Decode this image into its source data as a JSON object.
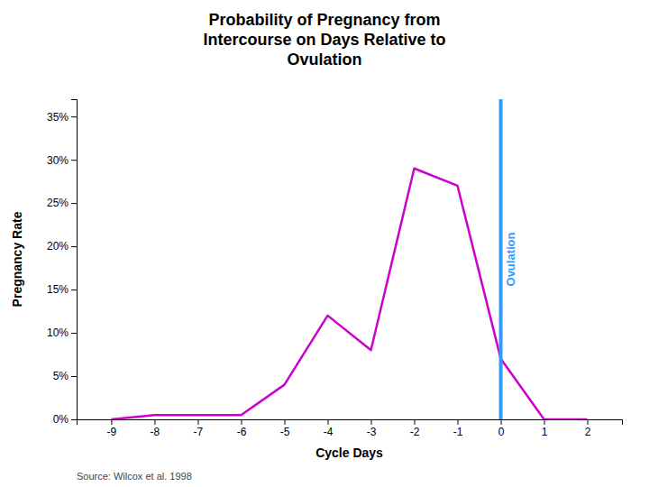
{
  "chart_data": {
    "type": "line",
    "title": "Probability of Pregnancy from\nIntercourse on Days Relative to\nOvulation",
    "x_label": "Cycle Days",
    "y_label": "Pregnancy Rate",
    "x": [
      -9,
      -8,
      -7,
      -6,
      -5,
      -4,
      -3,
      -2,
      -1,
      0,
      1,
      2
    ],
    "values": [
      0.0,
      0.005,
      0.005,
      0.005,
      0.04,
      0.12,
      0.08,
      0.29,
      0.27,
      0.07,
      0.0,
      0.0
    ],
    "color": "#CC00CC",
    "xlim": [
      -9.8,
      2.8
    ],
    "xticks": [
      -9,
      -8,
      -7,
      -6,
      -5,
      -4,
      -3,
      -2,
      -1,
      0,
      1,
      2
    ],
    "ylim": [
      0,
      0.37
    ],
    "yticks": [
      {
        "value": 0.0,
        "label": "0%"
      },
      {
        "value": 0.05,
        "label": "5%"
      },
      {
        "value": 0.1,
        "label": "10%"
      },
      {
        "value": 0.15,
        "label": "15%"
      },
      {
        "value": 0.2,
        "label": "20%"
      },
      {
        "value": 0.25,
        "label": "25%"
      },
      {
        "value": 0.3,
        "label": "30%"
      },
      {
        "value": 0.35,
        "label": "35%"
      }
    ],
    "grid": false,
    "annotations": [
      {
        "type": "vline",
        "x": 0,
        "text": "Ovulation",
        "color": "#3399FF"
      }
    ],
    "source": "Source: Wilcox et al. 1998"
  }
}
